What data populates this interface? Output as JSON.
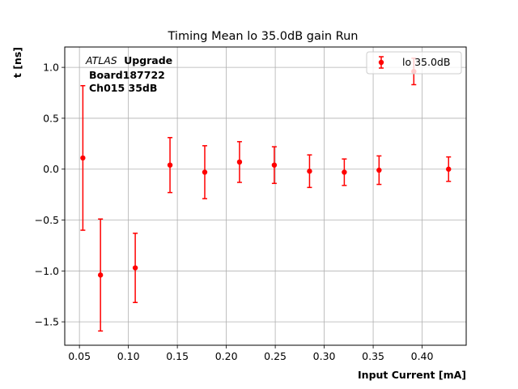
{
  "chart_data": {
    "type": "scatter",
    "title": "Timing Mean lo 35.0dB gain Run",
    "xlabel": "Input Current [mA]",
    "ylabel": "t [ns]",
    "xlim": [
      0.035,
      0.445
    ],
    "ylim": [
      -1.73,
      1.2
    ],
    "xticks": [
      0.05,
      0.1,
      0.15,
      0.2,
      0.25,
      0.3,
      0.35,
      0.4
    ],
    "xtick_labels": [
      "0.05",
      "0.10",
      "0.15",
      "0.20",
      "0.25",
      "0.30",
      "0.35",
      "0.40"
    ],
    "yticks": [
      -1.5,
      -1.0,
      -0.5,
      0.0,
      0.5,
      1.0
    ],
    "ytick_labels": [
      "−1.5",
      "−1.0",
      "−0.5",
      "0.0",
      "0.5",
      "1.0"
    ],
    "grid": true,
    "legend_position": "top-right",
    "series": [
      {
        "name": "lo 35.0dB",
        "color": "#ff0000",
        "marker": "circle",
        "points": [
          {
            "x": 0.0535,
            "y": 0.11,
            "err": 0.71
          },
          {
            "x": 0.0715,
            "y": -1.04,
            "err": 0.55
          },
          {
            "x": 0.107,
            "y": -0.97,
            "err": 0.34
          },
          {
            "x": 0.1425,
            "y": 0.04,
            "err": 0.27
          },
          {
            "x": 0.178,
            "y": -0.03,
            "err": 0.26
          },
          {
            "x": 0.2135,
            "y": 0.07,
            "err": 0.2
          },
          {
            "x": 0.249,
            "y": 0.04,
            "err": 0.18
          },
          {
            "x": 0.285,
            "y": -0.02,
            "err": 0.16
          },
          {
            "x": 0.3205,
            "y": -0.03,
            "err": 0.13
          },
          {
            "x": 0.356,
            "y": -0.01,
            "err": 0.14
          },
          {
            "x": 0.3915,
            "y": 0.96,
            "err": 0.13
          },
          {
            "x": 0.427,
            "y": 0.0,
            "err": 0.12
          }
        ]
      }
    ],
    "annotations": {
      "atlas": "ATLAS",
      "upgrade": "Upgrade",
      "board": "Board187722",
      "channel": "Ch015 35dB"
    }
  }
}
